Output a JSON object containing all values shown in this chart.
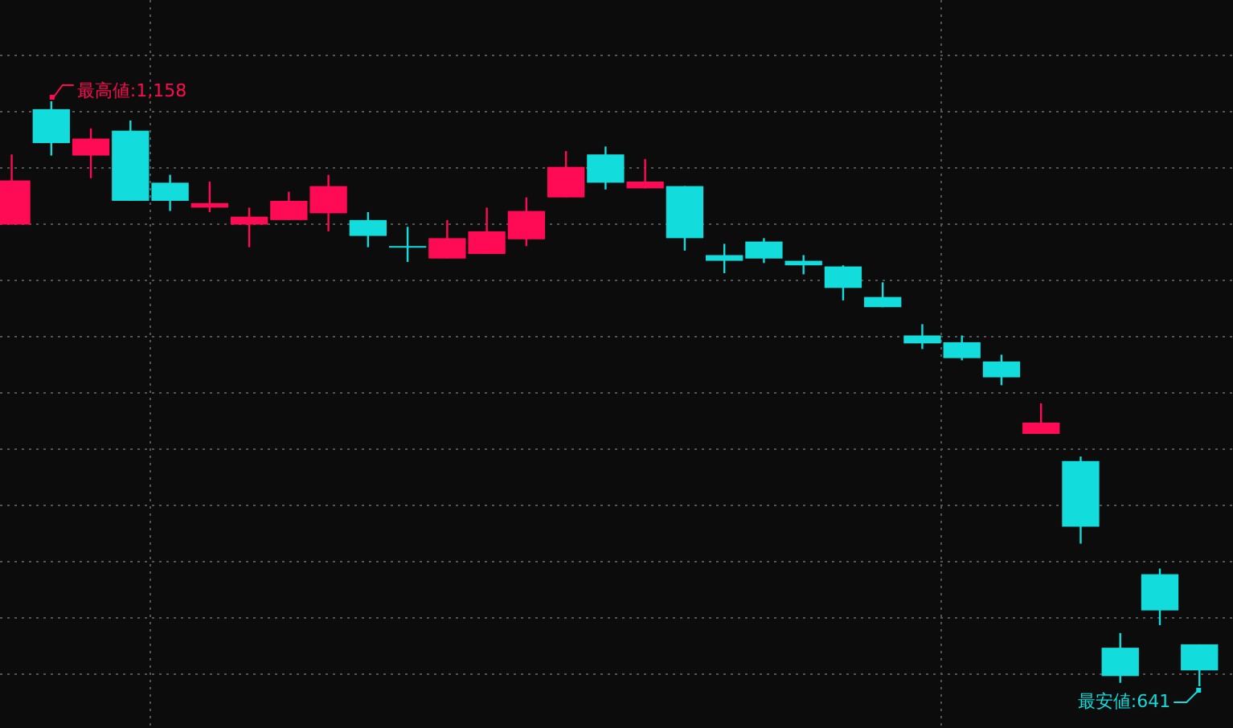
{
  "chart_data": {
    "type": "candlestick",
    "categories": [
      null,
      null,
      null,
      null,
      null,
      null,
      null,
      null,
      null,
      null,
      null,
      null,
      null,
      null,
      null,
      null,
      null,
      null,
      null,
      null,
      null,
      null,
      null,
      null,
      null,
      null,
      null,
      null,
      null,
      null,
      null
    ],
    "ohlc": [
      [
        1049,
        1111,
        1049,
        1088
      ],
      [
        1151,
        1158,
        1110,
        1121
      ],
      [
        1110,
        1134,
        1090,
        1125
      ],
      [
        1132,
        1141,
        1070,
        1070
      ],
      [
        1086,
        1093,
        1061,
        1070
      ],
      [
        1064,
        1087,
        1060,
        1068
      ],
      [
        1049,
        1064,
        1029,
        1056
      ],
      [
        1053,
        1078,
        1053,
        1070
      ],
      [
        1059,
        1093,
        1043,
        1083
      ],
      [
        1053,
        1060,
        1029,
        1039
      ],
      [
        1030,
        1047,
        1016,
        1029
      ],
      [
        1019,
        1053,
        1019,
        1037
      ],
      [
        1023,
        1064,
        1023,
        1043
      ],
      [
        1036,
        1073,
        1030,
        1061
      ],
      [
        1073,
        1114,
        1073,
        1100
      ],
      [
        1111,
        1118,
        1080,
        1086
      ],
      [
        1081,
        1107,
        1081,
        1087
      ],
      [
        1083,
        1083,
        1026,
        1037
      ],
      [
        1022,
        1032,
        1006,
        1017
      ],
      [
        1034,
        1037,
        1015,
        1019
      ],
      [
        1017,
        1022,
        1005,
        1013
      ],
      [
        1012,
        1013,
        982,
        993
      ],
      [
        985,
        998,
        976,
        976
      ],
      [
        951,
        961,
        939,
        944
      ],
      [
        945,
        951,
        929,
        931
      ],
      [
        928,
        934,
        907,
        914
      ],
      [
        864,
        891,
        864,
        874
      ],
      [
        840,
        844,
        767,
        782
      ],
      [
        675,
        688,
        644,
        650
      ],
      [
        740,
        745,
        695,
        708
      ],
      [
        678,
        678,
        641,
        655
      ]
    ],
    "colors": [
      "#ff0a54",
      "#12dcdc",
      "#ff0a54",
      "#12dcdc",
      "#12dcdc",
      "#ff0a54",
      "#ff0a54",
      "#ff0a54",
      "#ff0a54",
      "#12dcdc",
      "#12dcdc",
      "#ff0a54",
      "#ff0a54",
      "#ff0a54",
      "#ff0a54",
      "#12dcdc",
      "#ff0a54",
      "#12dcdc",
      "#12dcdc",
      "#12dcdc",
      "#12dcdc",
      "#12dcdc",
      "#12dcdc",
      "#12dcdc",
      "#12dcdc",
      "#12dcdc",
      "#ff0a54",
      "#12dcdc",
      "#12dcdc",
      "#12dcdc",
      "#12dcdc"
    ],
    "annotations": [
      "最高値:1,158",
      "最安値:641"
    ],
    "grid": true
  }
}
